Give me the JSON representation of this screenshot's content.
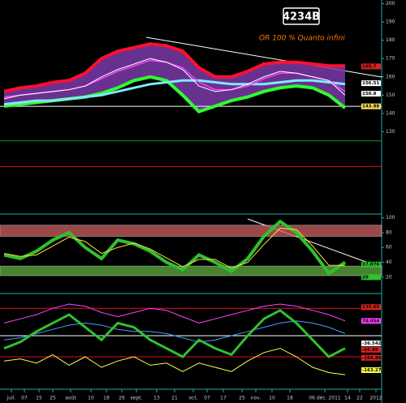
{
  "chart_data": [
    {
      "type": "line",
      "title": "4234B",
      "subtitle": "OR 100 % Quanto infini",
      "xlim": [
        0,
        470
      ],
      "ylim": [
        85,
        202
      ],
      "yticks": [
        130,
        140,
        150,
        160,
        170,
        180,
        190,
        200
      ],
      "x": [
        5,
        25,
        45,
        65,
        85,
        105,
        125,
        145,
        165,
        185,
        205,
        225,
        245,
        265,
        285,
        305,
        325,
        345,
        365,
        385,
        405,
        425
      ],
      "band": {
        "color": "#7a3aa8"
      },
      "series": [
        {
          "role": "upper",
          "color": "#ff1030",
          "width": 4,
          "values": [
            152,
            154,
            155,
            157,
            158,
            162,
            170,
            174,
            176,
            178,
            177,
            174,
            165,
            160,
            160,
            163,
            167,
            168,
            168,
            167,
            166,
            166
          ]
        },
        {
          "role": "lower",
          "color": "#30ff30",
          "width": 4,
          "values": [
            144,
            145,
            146,
            147,
            148,
            149,
            151,
            154,
            158,
            160,
            158,
            150,
            141,
            144,
            147,
            149,
            152,
            154,
            155,
            154,
            150,
            143
          ]
        },
        {
          "color": "#80e8ff",
          "width": 3,
          "values": [
            145,
            146,
            147,
            147,
            148,
            149,
            150,
            152,
            154,
            156,
            157,
            158,
            158,
            157,
            156,
            156,
            156,
            157,
            158,
            158,
            157,
            156
          ]
        },
        {
          "color": "#ff40ff",
          "width": 1.5,
          "values": [
            149,
            150,
            151,
            152,
            153,
            155,
            159,
            163,
            166,
            169,
            168,
            165,
            157,
            153,
            153,
            155,
            159,
            162,
            162,
            160,
            158,
            152
          ]
        },
        {
          "color": "#ffffff",
          "width": 1,
          "values": [
            148,
            150,
            151,
            152,
            153,
            155,
            160,
            164,
            167,
            170,
            168,
            164,
            155,
            152,
            153,
            156,
            160,
            163,
            162,
            160,
            158,
            150
          ]
        }
      ],
      "levels": [
        {
          "value": 125,
          "color": "#00a040"
        },
        {
          "value": 111,
          "color": "#e01020"
        },
        {
          "value": 143.88,
          "color": "#ffffff"
        }
      ],
      "tags": [
        {
          "value": 165.7,
          "label": "165.7",
          "color": "#e02020"
        },
        {
          "value": 156.51,
          "label": "156.51",
          "color": "#ffffff"
        },
        {
          "value": 150.8,
          "label": "150.8",
          "color": "#ffffff"
        },
        {
          "value": 143.88,
          "label": "143.88",
          "color": "#ffe060"
        }
      ]
    },
    {
      "type": "line",
      "xlim": [
        0,
        470
      ],
      "ylim": [
        -2,
        105
      ],
      "yticks": [
        20,
        40,
        60,
        80,
        100
      ],
      "x": [
        5,
        25,
        45,
        65,
        85,
        105,
        125,
        145,
        165,
        185,
        205,
        225,
        245,
        265,
        285,
        305,
        325,
        345,
        365,
        385,
        405,
        425
      ],
      "zones": [
        {
          "from": 75,
          "to": 90,
          "color": "#d06060"
        },
        {
          "from": 22,
          "to": 35,
          "color": "#60b040"
        }
      ],
      "series": [
        {
          "color": "#30c030",
          "width": 4,
          "values": [
            50,
            45,
            55,
            70,
            80,
            60,
            45,
            70,
            65,
            55,
            40,
            30,
            50,
            40,
            28,
            45,
            75,
            95,
            80,
            55,
            25,
            40
          ]
        },
        {
          "color": "#ffe040",
          "width": 1,
          "values": [
            52,
            48,
            50,
            62,
            74,
            68,
            52,
            60,
            66,
            58,
            46,
            34,
            44,
            44,
            32,
            40,
            64,
            86,
            84,
            62,
            36,
            36
          ]
        }
      ],
      "tags": [
        {
          "value": 37.076,
          "label": "37.076",
          "color": "#30c030"
        },
        {
          "value": 20,
          "label": "20",
          "color": "#30c030"
        }
      ]
    },
    {
      "type": "line",
      "xlim": [
        0,
        470
      ],
      "ylim": [
        -200,
        200
      ],
      "x": [
        5,
        25,
        45,
        65,
        85,
        105,
        125,
        145,
        165,
        185,
        205,
        225,
        245,
        265,
        285,
        305,
        325,
        345,
        365,
        385,
        405,
        425
      ],
      "levels": [
        {
          "value": 130,
          "color": "#e01020"
        },
        {
          "value": 0,
          "color": "#ffffff"
        },
        {
          "value": -100,
          "color": "#e01020"
        }
      ],
      "series": [
        {
          "color": "#ff40ff",
          "width": 1,
          "values": [
            60,
            80,
            100,
            130,
            150,
            140,
            110,
            90,
            110,
            130,
            120,
            90,
            60,
            80,
            100,
            120,
            140,
            150,
            140,
            120,
            100,
            70
          ]
        },
        {
          "color": "#40a0ff",
          "width": 1,
          "values": [
            -20,
            -10,
            10,
            30,
            50,
            60,
            50,
            30,
            20,
            20,
            10,
            -10,
            -30,
            -20,
            0,
            20,
            40,
            60,
            70,
            60,
            40,
            10
          ]
        },
        {
          "color": "#30c030",
          "width": 3,
          "values": [
            -60,
            -30,
            20,
            60,
            100,
            40,
            -20,
            60,
            40,
            -20,
            -60,
            -100,
            -20,
            -60,
            -90,
            0,
            80,
            120,
            60,
            -20,
            -100,
            -60
          ]
        },
        {
          "color": "#ffff40",
          "width": 1,
          "values": [
            -120,
            -110,
            -130,
            -90,
            -140,
            -100,
            -150,
            -120,
            -100,
            -140,
            -130,
            -170,
            -130,
            -150,
            -170,
            -120,
            -80,
            -60,
            -100,
            -150,
            -175,
            -185
          ]
        }
      ],
      "tags": [
        {
          "value": 135.65,
          "label": "135.65",
          "color": "#e02020"
        },
        {
          "value": 70.054,
          "label": "70.054",
          "color": "#ff40ff"
        },
        {
          "value": -36.542,
          "label": "-36.542",
          "color": "#ffffff"
        },
        {
          "value": -66.66,
          "label": "-66.66",
          "color": "#e02020"
        },
        {
          "value": -104.86,
          "label": "-104.86",
          "color": "#e02020"
        },
        {
          "value": -163.27,
          "label": "-163.27",
          "color": "#ffff40"
        }
      ],
      "xticks": [
        {
          "value": 14,
          "label": "juil."
        },
        {
          "value": 30,
          "label": "07"
        },
        {
          "value": 48,
          "label": "15"
        },
        {
          "value": 65,
          "label": "25"
        },
        {
          "value": 87,
          "label": "août"
        },
        {
          "value": 112,
          "label": "10"
        },
        {
          "value": 131,
          "label": "18"
        },
        {
          "value": 150,
          "label": "26"
        },
        {
          "value": 168,
          "label": "sept."
        },
        {
          "value": 193,
          "label": "13"
        },
        {
          "value": 215,
          "label": "21"
        },
        {
          "value": 238,
          "label": "oct."
        },
        {
          "value": 255,
          "label": "07"
        },
        {
          "value": 275,
          "label": "17"
        },
        {
          "value": 298,
          "label": "25"
        },
        {
          "value": 315,
          "label": "nov."
        },
        {
          "value": 335,
          "label": "10"
        },
        {
          "value": 357,
          "label": "18"
        },
        {
          "value": 400,
          "label": "06 déc. 2011"
        },
        {
          "value": 428,
          "label": "14"
        },
        {
          "value": 443,
          "label": "22"
        },
        {
          "value": 463,
          "label": "2012"
        }
      ]
    }
  ]
}
